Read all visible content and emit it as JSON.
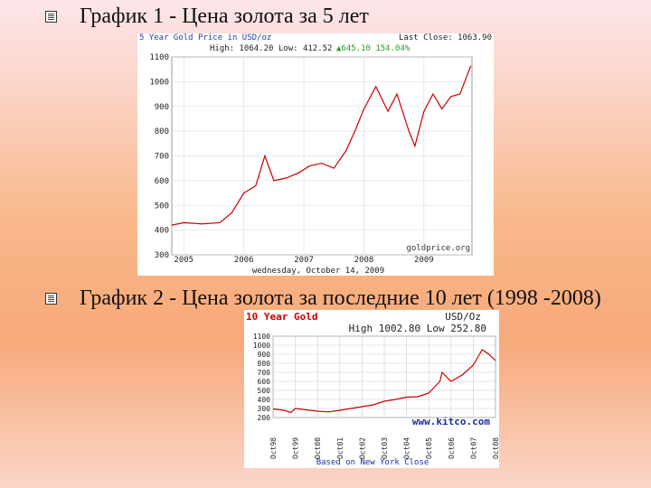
{
  "bullets": [
    "График 1 - Цена золота за 5 лет",
    "График 2 - Цена золота за последние 10 лет (1998 -2008)"
  ],
  "chart_data": [
    {
      "type": "line",
      "title": "5 Year Gold Price in USD/oz",
      "last_close": "Last Close: 1063.90",
      "high_low": "High: 1064.20 Low: 412.52",
      "change": "▲645.10 154.04%",
      "watermark": "goldprice.org",
      "date": "wednesday, October 14, 2009",
      "x": [
        2004.8,
        2005.0,
        2005.3,
        2005.6,
        2005.8,
        2006.0,
        2006.2,
        2006.35,
        2006.5,
        2006.7,
        2006.9,
        2007.1,
        2007.3,
        2007.5,
        2007.7,
        2007.85,
        2008.0,
        2008.2,
        2008.4,
        2008.55,
        2008.75,
        2008.85,
        2009.0,
        2009.15,
        2009.3,
        2009.45,
        2009.6,
        2009.78
      ],
      "series": [
        {
          "name": "Gold",
          "color": "#cc0000",
          "values": [
            420,
            430,
            425,
            430,
            470,
            550,
            580,
            700,
            600,
            610,
            630,
            660,
            670,
            650,
            720,
            800,
            890,
            980,
            880,
            950,
            800,
            740,
            880,
            950,
            890,
            940,
            950,
            1064
          ]
        }
      ],
      "xlim": [
        2004.8,
        2009.8
      ],
      "xticks": [
        2005,
        2006,
        2007,
        2008,
        2009
      ],
      "ylim": [
        300,
        1100
      ],
      "yticks": [
        300,
        400,
        500,
        600,
        700,
        800,
        900,
        1000,
        1100
      ],
      "grid": true
    },
    {
      "type": "line",
      "title": "10 Year Gold",
      "unit": "USD/Oz",
      "high_low": "High 1002.80 Low 252.80",
      "watermark": "www.kitco.com",
      "note": "Based on New York Close",
      "x": [
        1998.8,
        1999.3,
        1999.6,
        1999.8,
        2000.3,
        2000.8,
        2001.3,
        2001.8,
        2002.3,
        2002.8,
        2003.3,
        2003.8,
        2004.3,
        2004.8,
        2005.3,
        2005.8,
        2006.3,
        2006.4,
        2006.8,
        2007.3,
        2007.8,
        2008.2,
        2008.5,
        2008.8
      ],
      "series": [
        {
          "name": "Gold",
          "color": "#cc0000",
          "values": [
            295,
            280,
            255,
            300,
            285,
            270,
            262,
            280,
            300,
            320,
            340,
            380,
            400,
            425,
            430,
            470,
            600,
            700,
            600,
            670,
            780,
            950,
            900,
            830
          ]
        }
      ],
      "xlim": [
        1998.8,
        2008.8
      ],
      "xticks": [
        {
          "value": 1998.8,
          "label": "Oct98"
        },
        {
          "value": 1999.8,
          "label": "Oct99"
        },
        {
          "value": 2000.8,
          "label": "Oct00"
        },
        {
          "value": 2001.8,
          "label": "Oct01"
        },
        {
          "value": 2002.8,
          "label": "Oct02"
        },
        {
          "value": 2003.8,
          "label": "Oct03"
        },
        {
          "value": 2004.8,
          "label": "Oct04"
        },
        {
          "value": 2005.8,
          "label": "Oct05"
        },
        {
          "value": 2006.8,
          "label": "Oct06"
        },
        {
          "value": 2007.8,
          "label": "Oct07"
        },
        {
          "value": 2008.8,
          "label": "Oct08"
        }
      ],
      "ylim": [
        200,
        1100
      ],
      "yticks": [
        200,
        300,
        400,
        500,
        600,
        700,
        800,
        900,
        1000,
        1100
      ],
      "grid": true
    }
  ]
}
